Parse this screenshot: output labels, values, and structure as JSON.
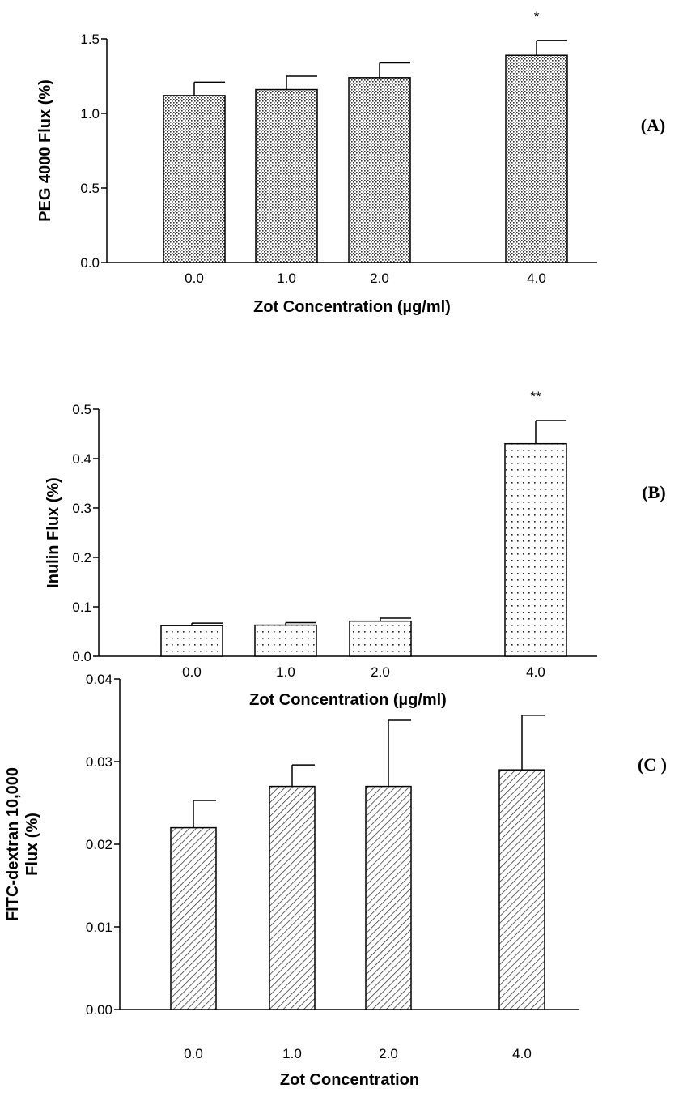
{
  "chart_data": [
    {
      "type": "bar",
      "panel_label": "(A)",
      "categories": [
        "0.0",
        "1.0",
        "2.0",
        "4.0"
      ],
      "values": [
        1.12,
        1.16,
        1.24,
        1.39
      ],
      "errors": [
        0.09,
        0.09,
        0.1,
        0.1
      ],
      "annotations": [
        "",
        "",
        "",
        "*"
      ],
      "xlabel": "Zot Concentration (µg/ml)",
      "ylabel": "PEG 4000 Flux (%)",
      "ylim": [
        0,
        1.5
      ],
      "yticks": [
        "0.0",
        "0.5",
        "1.0",
        "1.5"
      ],
      "fill_pattern": "dense-dots",
      "grid": false
    },
    {
      "type": "bar",
      "panel_label": "(B)",
      "categories": [
        "0.0",
        "1.0",
        "2.0",
        "4.0"
      ],
      "values": [
        0.062,
        0.063,
        0.071,
        0.43
      ],
      "errors": [
        0.005,
        0.005,
        0.006,
        0.047
      ],
      "annotations": [
        "",
        "",
        "",
        "**"
      ],
      "xlabel": "Zot Concentration (µg/ml)",
      "ylabel": "Inulin Flux (%)",
      "ylim": [
        0,
        0.5
      ],
      "yticks": [
        "0.0",
        "0.1",
        "0.2",
        "0.3",
        "0.4",
        "0.5"
      ],
      "fill_pattern": "sparse-dots",
      "grid": false
    },
    {
      "type": "bar",
      "panel_label": "(C )",
      "categories": [
        "0.0",
        "1.0",
        "2.0",
        "4.0"
      ],
      "values": [
        0.022,
        0.027,
        0.027,
        0.029
      ],
      "errors": [
        0.0033,
        0.0026,
        0.008,
        0.0066
      ],
      "annotations": [
        "",
        "",
        "",
        ""
      ],
      "xlabel": "Zot Concentration",
      "ylabel": [
        "FITC-dextran 10,000",
        "Flux (%)"
      ],
      "ylim": [
        0,
        0.04
      ],
      "yticks": [
        "0.00",
        "0.01",
        "0.02",
        "0.03",
        "0.04"
      ],
      "fill_pattern": "diagonal-hatch",
      "grid": false
    }
  ]
}
